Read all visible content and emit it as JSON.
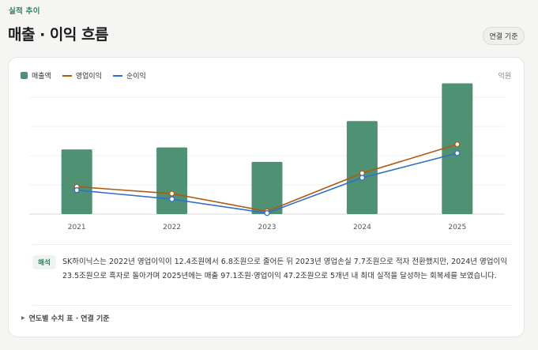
{
  "header": {
    "eyebrow": "실적 추이",
    "title": "매출 · 이익 흐름",
    "basis_button": "연결 기준"
  },
  "legend": {
    "items": [
      {
        "label": "매출액",
        "color": "#4e9273",
        "kind": "bar"
      },
      {
        "label": "영업이익",
        "color": "#b05a10",
        "kind": "line"
      },
      {
        "label": "순이익",
        "color": "#2f6fd1",
        "kind": "line"
      }
    ],
    "unit": "억원"
  },
  "chart_data": {
    "type": "bar",
    "categories": [
      "2021",
      "2022",
      "2023",
      "2024",
      "2025"
    ],
    "series": [
      {
        "name": "매출액",
        "kind": "bar",
        "color": "#4e9273",
        "values": [
          429978,
          446216,
          327657,
          661930,
          971000
        ]
      },
      {
        "name": "영업이익",
        "kind": "line",
        "color": "#b05a10",
        "values": [
          124103,
          68094,
          -77303,
          234673,
          472000
        ]
      },
      {
        "name": "순이익",
        "kind": "line",
        "color": "#2f6fd1",
        "values": [
          96162,
          22417,
          -91375,
          197969,
          399000
        ]
      }
    ],
    "title": "",
    "xlabel": "",
    "ylabel": "",
    "grid": true,
    "legend_position": "top-left"
  },
  "note": {
    "badge": "해석",
    "text": "SK하이닉스는 2022년 영업이익이 12.4조원에서 6.8조원으로 줄어든 뒤 2023년 영업손실 7.7조원으로 적자 전환했지만, 2024년 영업이익 23.5조원으로 흑자로 돌아가며 2025년에는 매출 97.1조원·영업이익 47.2조원으로 5개년 내 최대 실적을 달성하는 회복세를 보였습니다."
  },
  "table_toggle": {
    "label": "연도별 수치 표 · 연결 기준"
  }
}
